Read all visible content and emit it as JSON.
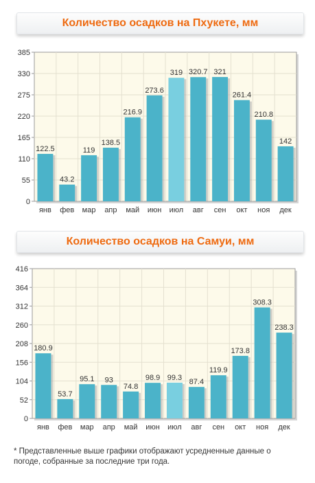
{
  "charts_titles": {
    "phuket": "Количество осадков на Пхукете, мм",
    "samui": "Количество осадков на Самуи, мм"
  },
  "colors": {
    "bar": "#4bb3c9",
    "bar_highlight": "#79cfe0",
    "plot_bg": "#fdfaea",
    "title": "#ee6a10"
  },
  "chart_data": [
    {
      "type": "bar",
      "title": "Количество осадков на Пхукете, мм",
      "categories": [
        "янв",
        "фев",
        "мар",
        "апр",
        "май",
        "июн",
        "июл",
        "авг",
        "сен",
        "окт",
        "ноя",
        "дек"
      ],
      "values": [
        122.5,
        43.2,
        119,
        138.5,
        216.9,
        273.6,
        319,
        320.7,
        321,
        261.4,
        210.8,
        142
      ],
      "value_labels": [
        "122.5",
        "43.2",
        "119",
        "138.5",
        "216.9",
        "273.6",
        "319",
        "320.7",
        "321",
        "261.4",
        "210.8",
        "142"
      ],
      "yticks": [
        "0",
        "55",
        "110",
        "165",
        "220",
        "275",
        "330",
        "385"
      ],
      "ylim": [
        0,
        385
      ],
      "highlight_index": 6,
      "grid": true
    },
    {
      "type": "bar",
      "title": "Количество осадков на Самуи, мм",
      "categories": [
        "янв",
        "фев",
        "мар",
        "апр",
        "май",
        "июн",
        "июл",
        "авг",
        "сен",
        "окт",
        "ноя",
        "дек"
      ],
      "values": [
        180.9,
        53.7,
        95.1,
        93,
        74.8,
        98.9,
        99.3,
        87.4,
        119.9,
        173.8,
        308.3,
        238.3
      ],
      "value_labels": [
        "180.9",
        "53.7",
        "95.1",
        "93",
        "74.8",
        "98.9",
        "99.3",
        "87.4",
        "119.9",
        "173.8",
        "308.3",
        "238.3"
      ],
      "yticks": [
        "0",
        "52",
        "104",
        "156",
        "208",
        "260",
        "312",
        "364",
        "416"
      ],
      "ylim": [
        0,
        416
      ],
      "highlight_index": 6,
      "grid": true
    }
  ],
  "footnote": "* Представленные выше графики отображают усредненные данные о погоде, собранные за последние три года."
}
